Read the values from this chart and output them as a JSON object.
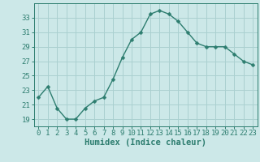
{
  "x": [
    0,
    1,
    2,
    3,
    4,
    5,
    6,
    7,
    8,
    9,
    10,
    11,
    12,
    13,
    14,
    15,
    16,
    17,
    18,
    19,
    20,
    21,
    22,
    23
  ],
  "y": [
    22,
    23.5,
    20.5,
    19,
    19,
    20.5,
    21.5,
    22,
    24.5,
    27.5,
    30,
    31,
    33.5,
    34,
    33.5,
    32.5,
    31,
    29.5,
    29,
    29,
    29,
    28,
    27,
    26.5
  ],
  "line_color": "#2d7d6f",
  "marker": "D",
  "marker_size": 2.5,
  "bg_color": "#cce8e8",
  "grid_color": "#aad0d0",
  "xlabel": "Humidex (Indice chaleur)",
  "ylim": [
    18,
    35
  ],
  "xlim": [
    -0.5,
    23.5
  ],
  "yticks": [
    19,
    21,
    23,
    25,
    27,
    29,
    31,
    33
  ],
  "xticks": [
    0,
    1,
    2,
    3,
    4,
    5,
    6,
    7,
    8,
    9,
    10,
    11,
    12,
    13,
    14,
    15,
    16,
    17,
    18,
    19,
    20,
    21,
    22,
    23
  ],
  "tick_color": "#2d7d6f",
  "label_fontsize": 7.5,
  "tick_fontsize": 6.5
}
